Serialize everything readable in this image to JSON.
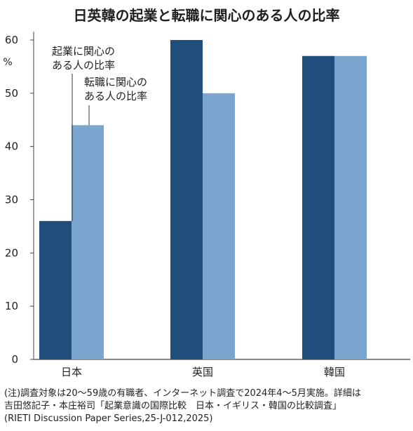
{
  "chart_data": {
    "type": "bar",
    "title": "日英韓の起業と転職に関心のある人の比率",
    "unit": "%",
    "categories": [
      "日本",
      "英国",
      "韓国"
    ],
    "series": [
      {
        "name": "起業に関心の\nある人の比率",
        "values": [
          26,
          60,
          57
        ],
        "color": "#1f4e7d"
      },
      {
        "name": "転職に関心の\nある人の比率",
        "values": [
          44,
          50,
          57
        ],
        "color": "#7ba5cf"
      }
    ],
    "ylim": [
      0,
      60
    ],
    "yticks": [
      0,
      10,
      20,
      30,
      40,
      50,
      60
    ],
    "grid": false,
    "legend": "annotation-callout-top-left"
  },
  "notes": [
    "(注)調査対象は20～59歳の有職者、インターネット調査で2024年4～5月実施。詳細は",
    "吉田悠記子・本庄裕司「起業意識の国際比較　日本・イギリス・韓国の比較調査」",
    "(RIETI Discussion Paper Series,25-J-012,2025)"
  ]
}
